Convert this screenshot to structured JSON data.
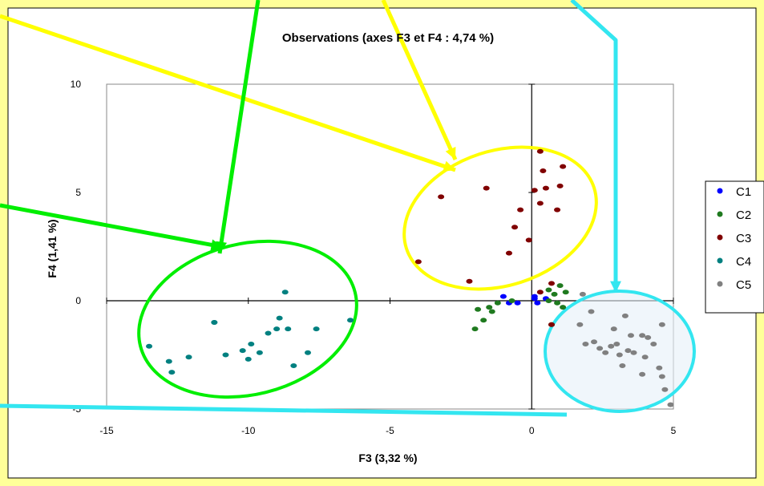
{
  "chart_data": {
    "type": "scatter",
    "title": "Observations (axes F3 et F4 : 4,74 %)",
    "xlabel": "F3 (3,32 %)",
    "ylabel": "F4 (1,41 %)",
    "xlim": [
      -15,
      5
    ],
    "ylim": [
      -5,
      10
    ],
    "x_ticks": [
      "-15",
      "-10",
      "-5",
      "0",
      "5"
    ],
    "y_ticks": [
      "-5",
      "0",
      "5",
      "10"
    ],
    "grid": false,
    "legend_position": "right",
    "series": [
      {
        "name": "C1",
        "color": "#0000ff",
        "points": [
          [
            -1.0,
            0.2
          ],
          [
            -0.8,
            -0.1
          ],
          [
            0.1,
            0.2
          ],
          [
            0.2,
            -0.1
          ],
          [
            0.5,
            0.1
          ],
          [
            -0.5,
            -0.1
          ],
          [
            0.1,
            0.1
          ]
        ]
      },
      {
        "name": "C2",
        "color": "#1f7a1f",
        "points": [
          [
            -2.0,
            -1.3
          ],
          [
            -1.7,
            -0.9
          ],
          [
            -1.9,
            -0.4
          ],
          [
            -1.5,
            -0.3
          ],
          [
            -1.2,
            -0.1
          ],
          [
            -0.7,
            0.0
          ],
          [
            -1.4,
            -0.5
          ],
          [
            0.6,
            0.5
          ],
          [
            1.0,
            0.7
          ],
          [
            0.8,
            0.3
          ],
          [
            0.6,
            0.0
          ],
          [
            0.9,
            -0.1
          ],
          [
            1.2,
            0.4
          ],
          [
            0.7,
            -1.1
          ],
          [
            1.1,
            -0.3
          ]
        ]
      },
      {
        "name": "C3",
        "color": "#800000",
        "points": [
          [
            0.3,
            6.9
          ],
          [
            0.4,
            6.0
          ],
          [
            1.1,
            6.2
          ],
          [
            1.0,
            5.3
          ],
          [
            0.5,
            5.2
          ],
          [
            0.1,
            5.1
          ],
          [
            0.3,
            4.5
          ],
          [
            0.9,
            4.2
          ],
          [
            -0.4,
            4.2
          ],
          [
            -1.6,
            5.2
          ],
          [
            -3.2,
            4.8
          ],
          [
            -0.6,
            3.4
          ],
          [
            -0.1,
            2.8
          ],
          [
            -0.8,
            2.2
          ],
          [
            -4.0,
            1.8
          ],
          [
            -2.2,
            0.9
          ],
          [
            0.7,
            0.8
          ],
          [
            0.3,
            0.4
          ],
          [
            0.7,
            -1.1
          ]
        ]
      },
      {
        "name": "C4",
        "color": "#008080",
        "points": [
          [
            -13.5,
            -2.1
          ],
          [
            -12.8,
            -2.8
          ],
          [
            -12.7,
            -3.3
          ],
          [
            -12.1,
            -2.6
          ],
          [
            -11.2,
            -1.0
          ],
          [
            -10.8,
            -2.5
          ],
          [
            -10.2,
            -2.3
          ],
          [
            -10.0,
            -2.7
          ],
          [
            -9.9,
            -2.0
          ],
          [
            -9.6,
            -2.4
          ],
          [
            -9.3,
            -1.5
          ],
          [
            -9.0,
            -1.3
          ],
          [
            -8.9,
            -0.8
          ],
          [
            -8.7,
            0.4
          ],
          [
            -8.6,
            -1.3
          ],
          [
            -8.4,
            -3.0
          ],
          [
            -7.9,
            -2.4
          ],
          [
            -7.6,
            -1.3
          ],
          [
            -6.4,
            -0.9
          ],
          [
            -11.2,
            -1.0
          ]
        ]
      },
      {
        "name": "C5",
        "color": "#808080",
        "points": [
          [
            1.8,
            0.3
          ],
          [
            2.1,
            -0.5
          ],
          [
            1.7,
            -1.1
          ],
          [
            1.9,
            -2.0
          ],
          [
            2.4,
            -2.2
          ],
          [
            2.6,
            -2.4
          ],
          [
            2.8,
            -2.1
          ],
          [
            3.0,
            -2.0
          ],
          [
            3.1,
            -2.5
          ],
          [
            2.9,
            -1.3
          ],
          [
            3.3,
            -0.7
          ],
          [
            3.5,
            -1.6
          ],
          [
            3.9,
            -1.6
          ],
          [
            4.1,
            -1.7
          ],
          [
            4.3,
            -2.0
          ],
          [
            4.6,
            -1.1
          ],
          [
            3.6,
            -2.4
          ],
          [
            3.9,
            -3.4
          ],
          [
            4.0,
            -2.6
          ],
          [
            4.5,
            -3.1
          ],
          [
            4.6,
            -3.5
          ],
          [
            4.7,
            -4.1
          ],
          [
            4.9,
            -4.8
          ],
          [
            3.2,
            -3.0
          ],
          [
            2.2,
            -1.9
          ],
          [
            3.4,
            -2.3
          ]
        ]
      }
    ]
  },
  "annotations": {
    "ellipse_colors": [
      "#00ee00",
      "#ffff00",
      "#33e6f0"
    ],
    "frame_color": "#ffff99"
  }
}
